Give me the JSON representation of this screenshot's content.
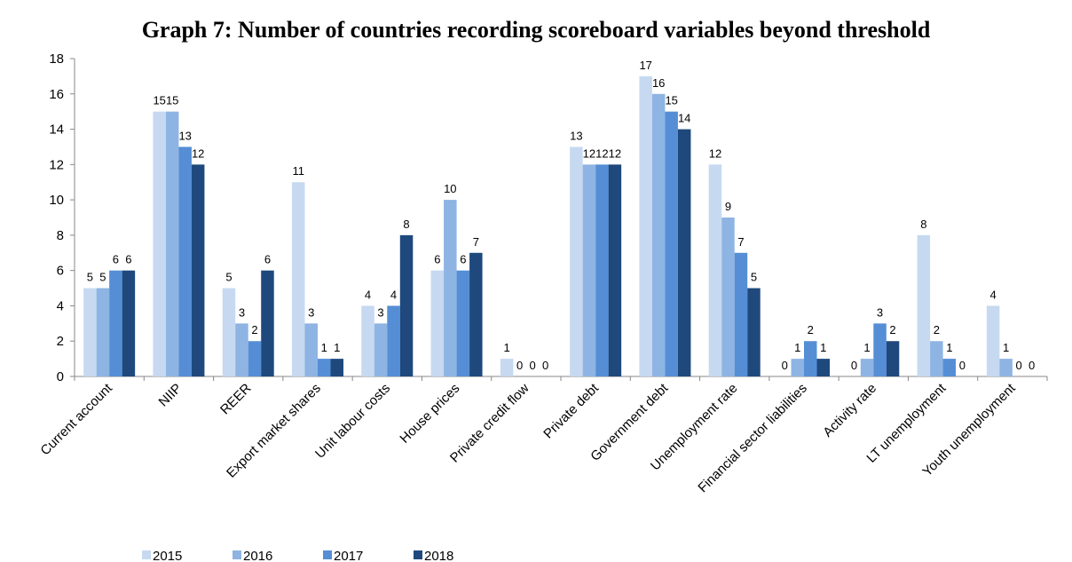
{
  "chart_data": {
    "type": "bar",
    "title": "Graph 7: Number of countries recording scoreboard variables beyond threshold",
    "categories": [
      "Current account",
      "NIIP",
      "REER",
      "Export market shares",
      "Unit labour costs",
      "House prices",
      "Private credit flow",
      "Private debt",
      "Government debt",
      "Unemployment rate",
      "Financial sector liabilities",
      "Activity rate",
      "LT unemployment",
      "Youth unemployment"
    ],
    "series": [
      {
        "name": "2015",
        "color": "#c6d9f1",
        "values": [
          5,
          15,
          5,
          11,
          4,
          6,
          1,
          13,
          17,
          12,
          0,
          0,
          8,
          4
        ]
      },
      {
        "name": "2016",
        "color": "#8eb4e3",
        "values": [
          5,
          15,
          3,
          3,
          3,
          10,
          0,
          12,
          16,
          9,
          1,
          1,
          2,
          1
        ]
      },
      {
        "name": "2017",
        "color": "#558ed5",
        "values": [
          6,
          13,
          2,
          1,
          4,
          6,
          0,
          12,
          15,
          7,
          2,
          3,
          1,
          0
        ]
      },
      {
        "name": "2018",
        "color": "#1f497d",
        "values": [
          6,
          12,
          6,
          1,
          8,
          7,
          0,
          12,
          14,
          5,
          1,
          2,
          0,
          0
        ]
      }
    ],
    "ylim": [
      0,
      18
    ],
    "yticks": [
      0,
      2,
      4,
      6,
      8,
      10,
      12,
      14,
      16,
      18
    ],
    "grid": false,
    "legend": "bottom"
  }
}
